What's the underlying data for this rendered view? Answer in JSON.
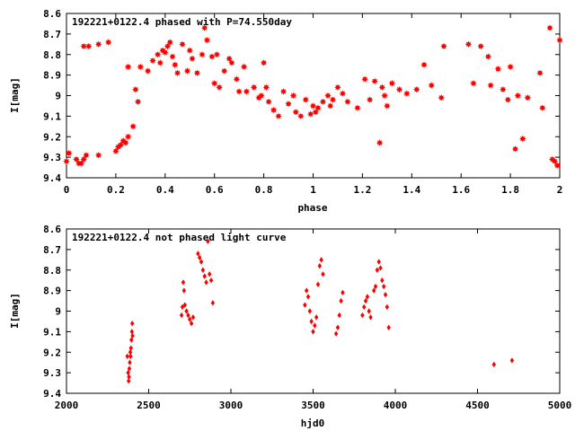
{
  "chart_data": [
    {
      "type": "scatter",
      "title": "192221+0122.4 phased with P=74.550day",
      "xlabel": "phase",
      "ylabel": "I[mag]",
      "xlim": [
        0,
        2
      ],
      "ylim": [
        8.6,
        9.4
      ],
      "y_inverted": true,
      "x_ticks": [
        "0",
        "0.2",
        "0.4",
        "0.6",
        "0.8",
        "1",
        "1.2",
        "1.4",
        "1.6",
        "1.8",
        "2"
      ],
      "y_ticks": [
        "8.6",
        "8.7",
        "8.8",
        "8.9",
        "9",
        "9.1",
        "9.2",
        "9.3",
        "9.4"
      ],
      "grid": false,
      "marker": "star",
      "color": "#ff0000",
      "x": [
        0.0,
        0.01,
        0.04,
        0.05,
        0.06,
        0.07,
        0.08,
        0.09,
        0.07,
        0.13,
        0.17,
        0.13,
        0.2,
        0.21,
        0.22,
        0.23,
        0.24,
        0.25,
        0.27,
        0.28,
        0.25,
        0.29,
        0.3,
        0.33,
        0.35,
        0.37,
        0.38,
        0.39,
        0.4,
        0.41,
        0.42,
        0.43,
        0.44,
        0.45,
        0.47,
        0.49,
        0.5,
        0.51,
        0.53,
        0.55,
        0.56,
        0.57,
        0.59,
        0.6,
        0.61,
        0.62,
        0.64,
        0.66,
        0.67,
        0.69,
        0.7,
        0.72,
        0.73,
        0.76,
        0.78,
        0.79,
        0.8,
        0.81,
        0.82,
        0.84,
        0.86,
        0.88,
        0.9,
        0.92,
        0.93,
        0.95,
        0.97,
        0.99,
        1.0,
        1.01,
        1.02,
        1.04,
        1.06,
        1.07,
        1.08,
        1.1,
        1.12,
        1.14,
        1.18,
        1.21,
        1.23,
        1.25,
        1.27,
        1.28,
        1.29,
        1.3,
        1.32,
        1.35,
        1.38,
        1.42,
        1.45,
        1.48,
        1.52,
        1.53,
        1.63,
        1.65,
        1.68,
        1.71,
        1.72,
        1.75,
        1.77,
        1.79,
        1.8,
        1.82,
        1.83,
        1.85,
        1.87,
        1.92,
        1.93,
        1.96,
        1.97,
        1.98,
        1.99,
        2.0
      ],
      "y": [
        9.32,
        9.28,
        9.31,
        9.33,
        9.33,
        9.31,
        9.29,
        8.76,
        8.76,
        8.75,
        8.74,
        9.29,
        9.27,
        9.25,
        9.24,
        9.22,
        9.23,
        9.2,
        9.15,
        8.97,
        8.86,
        9.03,
        8.86,
        8.88,
        8.83,
        8.8,
        8.84,
        8.78,
        8.79,
        8.76,
        8.74,
        8.81,
        8.85,
        8.89,
        8.75,
        8.88,
        8.78,
        8.82,
        8.89,
        8.8,
        8.67,
        8.73,
        8.81,
        8.94,
        8.8,
        8.96,
        8.88,
        8.82,
        8.84,
        8.92,
        8.98,
        8.86,
        8.98,
        8.96,
        9.01,
        9.0,
        8.84,
        8.96,
        9.03,
        9.07,
        9.1,
        8.98,
        9.04,
        9.0,
        9.08,
        9.1,
        9.02,
        9.09,
        9.05,
        9.08,
        9.06,
        9.03,
        9.0,
        9.05,
        9.02,
        8.96,
        8.99,
        9.03,
        9.06,
        8.92,
        9.02,
        8.93,
        9.23,
        8.96,
        9.0,
        9.05,
        8.94,
        8.97,
        8.99,
        8.97,
        8.85,
        8.95,
        9.01,
        8.76,
        8.75,
        8.94,
        8.76,
        8.81,
        8.95,
        8.87,
        8.97,
        9.02,
        8.86,
        9.26,
        9.0,
        9.21,
        9.01,
        8.89,
        9.06,
        8.67,
        9.31,
        9.32,
        9.34,
        8.73
      ]
    },
    {
      "type": "scatter",
      "title": "192221+0122.4 not phased light curve",
      "xlabel": "hjd0",
      "ylabel": "I[mag]",
      "xlim": [
        2000,
        5000
      ],
      "ylim": [
        8.6,
        9.4
      ],
      "y_inverted": true,
      "x_ticks": [
        "2000",
        "2500",
        "3000",
        "3500",
        "4000",
        "4500",
        "5000"
      ],
      "y_ticks": [
        "8.6",
        "8.7",
        "8.8",
        "8.9",
        "9",
        "9.1",
        "9.2",
        "9.3",
        "9.4"
      ],
      "grid": false,
      "marker": "diamond",
      "color": "#ff0000",
      "x": [
        2370,
        2375,
        2378,
        2380,
        2382,
        2385,
        2388,
        2390,
        2392,
        2395,
        2398,
        2400,
        2402,
        2700,
        2705,
        2710,
        2715,
        2720,
        2730,
        2740,
        2750,
        2760,
        2770,
        2800,
        2810,
        2820,
        2830,
        2840,
        2850,
        2860,
        2870,
        2880,
        2890,
        3450,
        3460,
        3470,
        3480,
        3490,
        3500,
        3510,
        3520,
        3530,
        3540,
        3550,
        3560,
        3640,
        3650,
        3660,
        3670,
        3680,
        3800,
        3810,
        3820,
        3830,
        3840,
        3850,
        3870,
        3880,
        3890,
        3900,
        3910,
        3920,
        3930,
        3940,
        3950,
        3960,
        4600,
        4710
      ],
      "y": [
        9.22,
        9.3,
        9.34,
        9.32,
        9.28,
        9.25,
        9.2,
        9.22,
        9.18,
        9.14,
        9.1,
        9.06,
        9.12,
        9.02,
        8.98,
        8.86,
        8.9,
        8.97,
        9.0,
        9.02,
        9.04,
        9.06,
        9.03,
        8.72,
        8.74,
        8.76,
        8.8,
        8.83,
        8.86,
        8.66,
        8.82,
        8.85,
        8.96,
        8.97,
        8.9,
        8.93,
        9.0,
        9.05,
        9.1,
        9.07,
        9.03,
        8.87,
        8.78,
        8.75,
        8.82,
        9.11,
        9.08,
        9.02,
        8.95,
        8.91,
        9.02,
        8.98,
        8.95,
        8.93,
        9.0,
        9.03,
        8.9,
        8.88,
        8.8,
        8.76,
        8.79,
        8.85,
        8.88,
        8.92,
        8.98,
        9.08,
        9.26,
        9.24
      ]
    }
  ]
}
